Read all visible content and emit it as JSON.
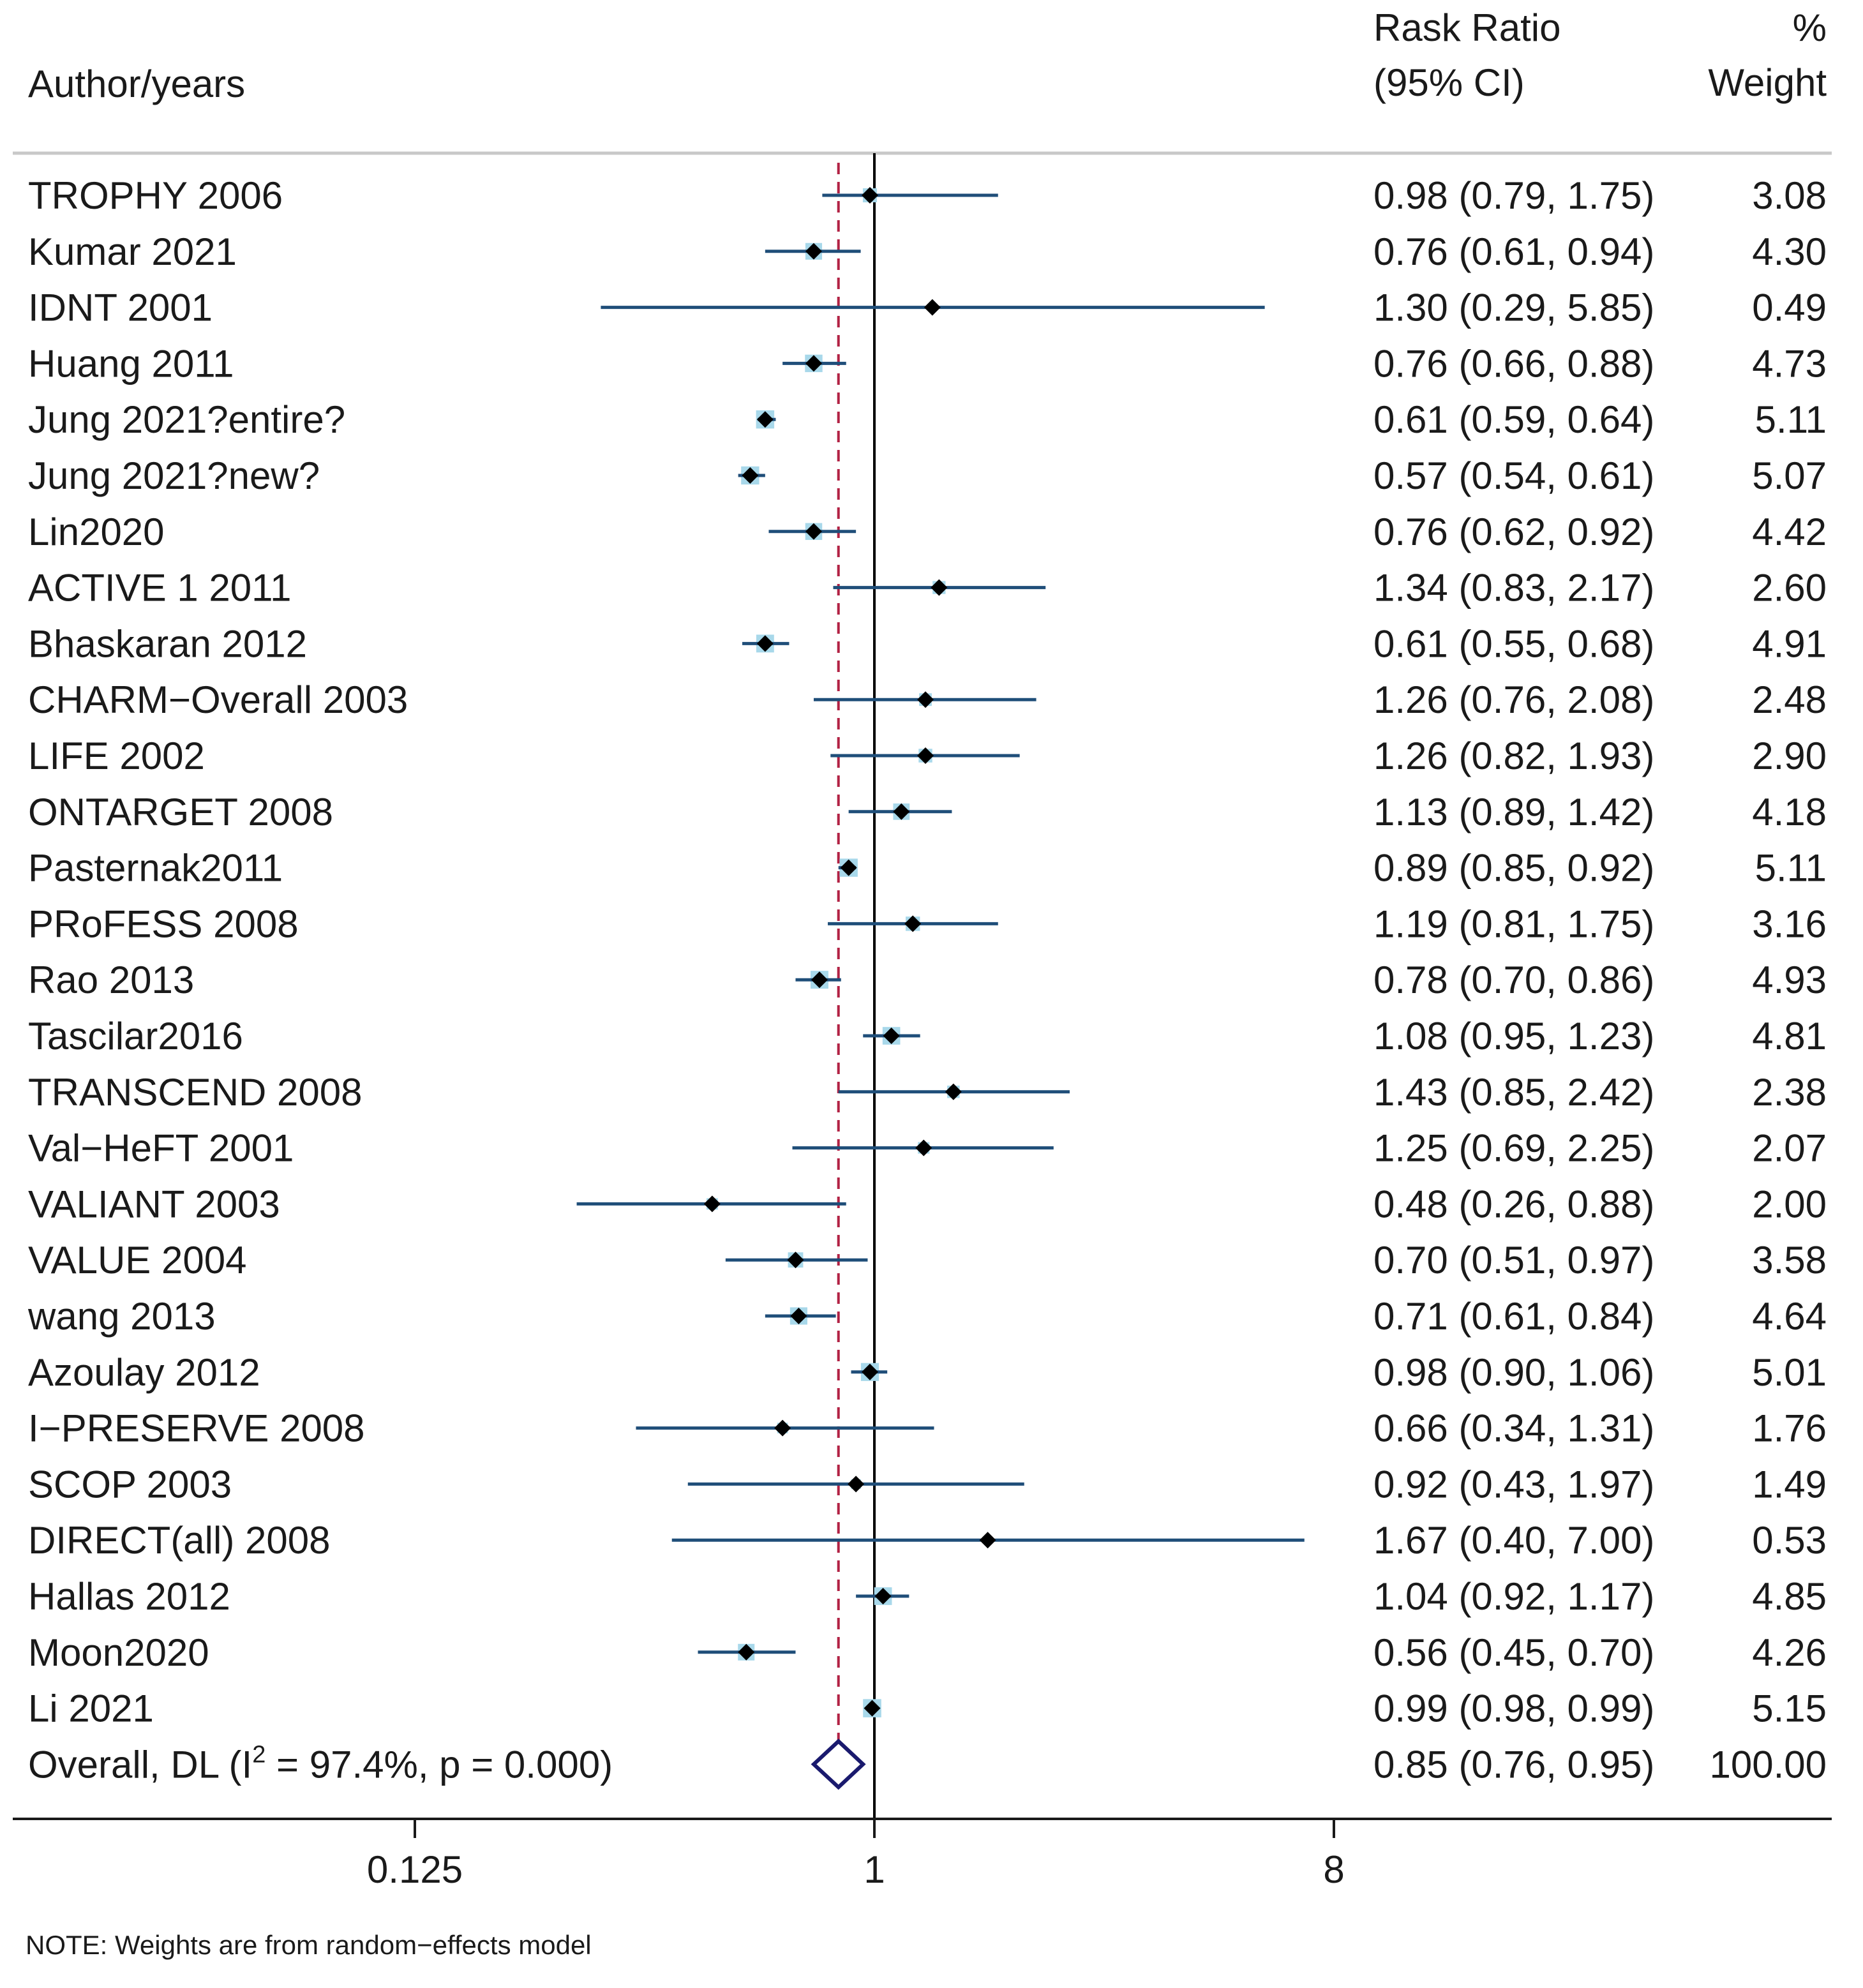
{
  "chart_data": {
    "type": "forest",
    "header": {
      "study_label": "Author/years",
      "effect_label_1": "Rask Ratio",
      "effect_label_2": "(95% CI)",
      "weight_label_1": "%",
      "weight_label_2": "Weight"
    },
    "studies": [
      {
        "name": "TROPHY 2006",
        "rr": 0.98,
        "lo": 0.79,
        "hi": 1.75,
        "ci_text": "0.98 (0.79, 1.75)",
        "weight": "3.08"
      },
      {
        "name": "Kumar 2021",
        "rr": 0.76,
        "lo": 0.61,
        "hi": 0.94,
        "ci_text": "0.76 (0.61, 0.94)",
        "weight": "4.30"
      },
      {
        "name": "IDNT 2001",
        "rr": 1.3,
        "lo": 0.29,
        "hi": 5.85,
        "ci_text": "1.30 (0.29, 5.85)",
        "weight": "0.49"
      },
      {
        "name": "Huang 2011",
        "rr": 0.76,
        "lo": 0.66,
        "hi": 0.88,
        "ci_text": "0.76 (0.66, 0.88)",
        "weight": "4.73"
      },
      {
        "name": "Jung 2021?entire?",
        "rr": 0.61,
        "lo": 0.59,
        "hi": 0.64,
        "ci_text": "0.61 (0.59, 0.64)",
        "weight": "5.11"
      },
      {
        "name": "Jung 2021?new?",
        "rr": 0.57,
        "lo": 0.54,
        "hi": 0.61,
        "ci_text": "0.57 (0.54, 0.61)",
        "weight": "5.07"
      },
      {
        "name": "Lin2020",
        "rr": 0.76,
        "lo": 0.62,
        "hi": 0.92,
        "ci_text": "0.76 (0.62, 0.92)",
        "weight": "4.42"
      },
      {
        "name": "ACTIVE 1 2011",
        "rr": 1.34,
        "lo": 0.83,
        "hi": 2.17,
        "ci_text": "1.34 (0.83, 2.17)",
        "weight": "2.60"
      },
      {
        "name": "Bhaskaran 2012",
        "rr": 0.61,
        "lo": 0.55,
        "hi": 0.68,
        "ci_text": "0.61 (0.55, 0.68)",
        "weight": "4.91"
      },
      {
        "name": "CHARM−Overall 2003",
        "rr": 1.26,
        "lo": 0.76,
        "hi": 2.08,
        "ci_text": "1.26 (0.76, 2.08)",
        "weight": "2.48"
      },
      {
        "name": "LIFE 2002",
        "rr": 1.26,
        "lo": 0.82,
        "hi": 1.93,
        "ci_text": "1.26 (0.82, 1.93)",
        "weight": "2.90"
      },
      {
        "name": "ONTARGET 2008",
        "rr": 1.13,
        "lo": 0.89,
        "hi": 1.42,
        "ci_text": "1.13 (0.89, 1.42)",
        "weight": "4.18"
      },
      {
        "name": "Pasternak2011",
        "rr": 0.89,
        "lo": 0.85,
        "hi": 0.92,
        "ci_text": "0.89 (0.85, 0.92)",
        "weight": "5.11"
      },
      {
        "name": "PRoFESS 2008",
        "rr": 1.19,
        "lo": 0.81,
        "hi": 1.75,
        "ci_text": "1.19 (0.81, 1.75)",
        "weight": "3.16"
      },
      {
        "name": "Rao 2013",
        "rr": 0.78,
        "lo": 0.7,
        "hi": 0.86,
        "ci_text": "0.78 (0.70, 0.86)",
        "weight": "4.93"
      },
      {
        "name": "Tascilar2016",
        "rr": 1.08,
        "lo": 0.95,
        "hi": 1.23,
        "ci_text": "1.08 (0.95, 1.23)",
        "weight": "4.81"
      },
      {
        "name": "TRANSCEND 2008",
        "rr": 1.43,
        "lo": 0.85,
        "hi": 2.42,
        "ci_text": "1.43 (0.85, 2.42)",
        "weight": "2.38"
      },
      {
        "name": "Val−HeFT 2001",
        "rr": 1.25,
        "lo": 0.69,
        "hi": 2.25,
        "ci_text": "1.25 (0.69, 2.25)",
        "weight": "2.07"
      },
      {
        "name": "VALIANT 2003",
        "rr": 0.48,
        "lo": 0.26,
        "hi": 0.88,
        "ci_text": "0.48 (0.26, 0.88)",
        "weight": "2.00"
      },
      {
        "name": "VALUE 2004",
        "rr": 0.7,
        "lo": 0.51,
        "hi": 0.97,
        "ci_text": "0.70 (0.51, 0.97)",
        "weight": "3.58"
      },
      {
        "name": "wang 2013",
        "rr": 0.71,
        "lo": 0.61,
        "hi": 0.84,
        "ci_text": "0.71 (0.61, 0.84)",
        "weight": "4.64"
      },
      {
        "name": "Azoulay 2012",
        "rr": 0.98,
        "lo": 0.9,
        "hi": 1.06,
        "ci_text": "0.98 (0.90, 1.06)",
        "weight": "5.01"
      },
      {
        "name": "I−PRESERVE 2008",
        "rr": 0.66,
        "lo": 0.34,
        "hi": 1.31,
        "ci_text": "0.66 (0.34, 1.31)",
        "weight": "1.76"
      },
      {
        "name": "SCOP 2003",
        "rr": 0.92,
        "lo": 0.43,
        "hi": 1.97,
        "ci_text": "0.92 (0.43, 1.97)",
        "weight": "1.49"
      },
      {
        "name": "DIRECT(all) 2008",
        "rr": 1.67,
        "lo": 0.4,
        "hi": 7.0,
        "ci_text": "1.67 (0.40, 7.00)",
        "weight": "0.53"
      },
      {
        "name": "Hallas 2012",
        "rr": 1.04,
        "lo": 0.92,
        "hi": 1.17,
        "ci_text": "1.04 (0.92, 1.17)",
        "weight": "4.85"
      },
      {
        "name": "Moon2020",
        "rr": 0.56,
        "lo": 0.45,
        "hi": 0.7,
        "ci_text": "0.56 (0.45, 0.70)",
        "weight": "4.26"
      },
      {
        "name": "Li 2021",
        "rr": 0.99,
        "lo": 0.98,
        "hi": 0.99,
        "ci_text": "0.99 (0.98, 0.99)",
        "weight": "5.15"
      }
    ],
    "overall": {
      "label_prefix": "Overall, DL (I",
      "label_sup": "2",
      "label_suffix": " = 97.4%, p = 0.000)",
      "rr": 0.85,
      "lo": 0.76,
      "hi": 0.95,
      "ci_text": "0.85 (0.76, 0.95)",
      "weight": "100.00"
    },
    "x_axis": {
      "scale": "log",
      "ticks": [
        0.125,
        1,
        8
      ],
      "tick_labels": [
        "0.125",
        "1",
        "8"
      ],
      "null_value": 1
    },
    "note": "NOTE: Weights are from random−effects model",
    "colors": {
      "ci_line": "#1f4e79",
      "weight_box": "#a8d8ea",
      "point": "#000000",
      "null_line": "#000000",
      "overall_line": "#b22244",
      "overall_diamond": "#1a1a6e",
      "separator": "#c8c8c8"
    }
  }
}
